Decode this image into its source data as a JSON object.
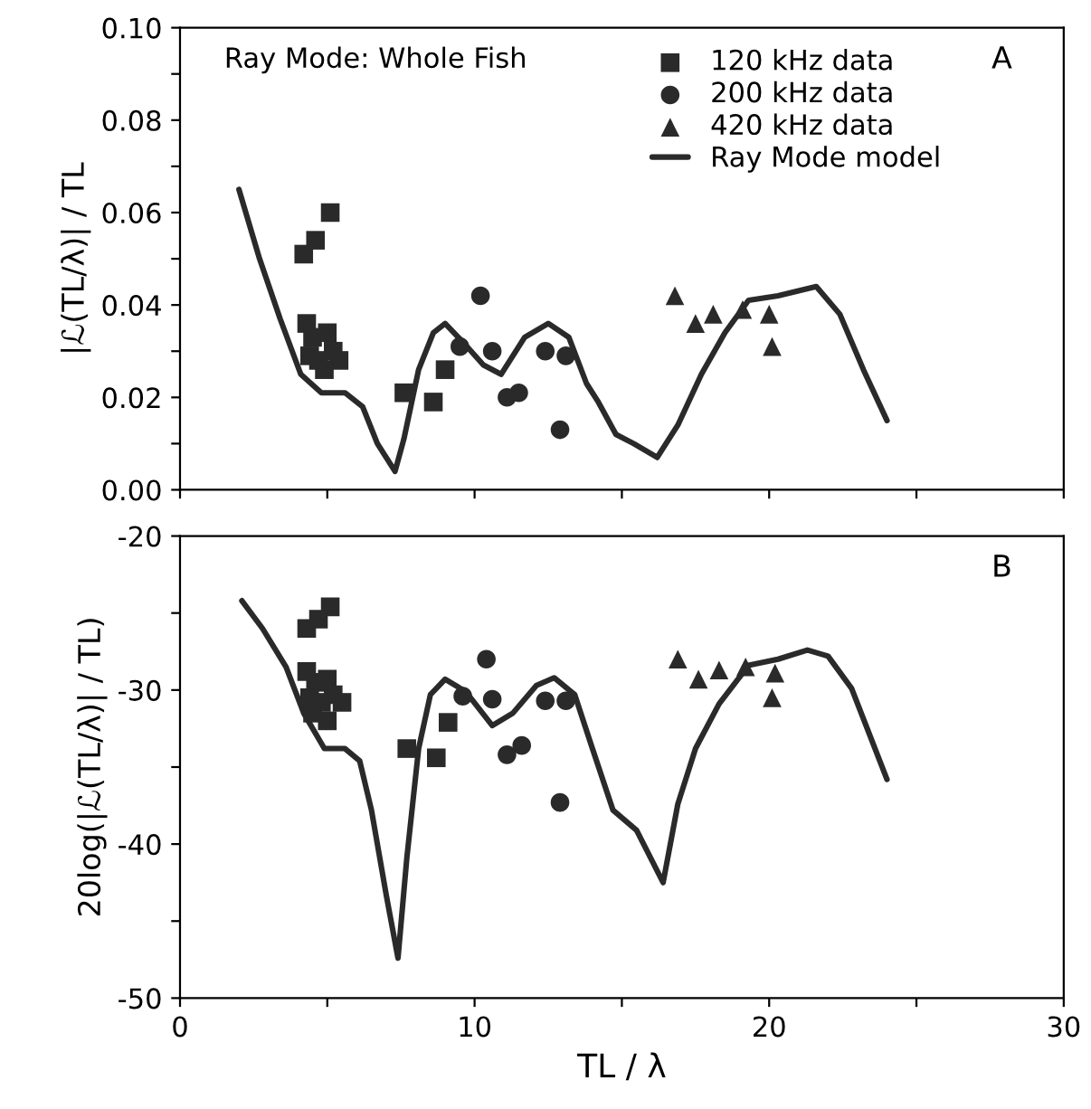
{
  "chart_data": [
    {
      "type": "scatter",
      "ylabel": "|ℒ(TL/λ)| / TL",
      "annotations": [
        "Ray Mode: Whole Fish",
        "A"
      ],
      "xlim": [
        0,
        30
      ],
      "ylim": [
        0,
        0.1
      ],
      "xticks": [
        {
          "value": 0,
          "label": null
        },
        {
          "value": 5,
          "label": null
        },
        {
          "value": 10,
          "label": null
        },
        {
          "value": 15,
          "label": null
        },
        {
          "value": 20,
          "label": null
        },
        {
          "value": 25,
          "label": null
        },
        {
          "value": 30,
          "label": null
        }
      ],
      "yticks": [
        {
          "value": 0,
          "label": "0.00"
        },
        {
          "value": 0.01,
          "label": null
        },
        {
          "value": 0.02,
          "label": "0.02"
        },
        {
          "value": 0.03,
          "label": null
        },
        {
          "value": 0.04,
          "label": "0.04"
        },
        {
          "value": 0.05,
          "label": null
        },
        {
          "value": 0.06,
          "label": "0.06"
        },
        {
          "value": 0.07,
          "label": null
        },
        {
          "value": 0.08,
          "label": "0.08"
        },
        {
          "value": 0.09,
          "label": null
        },
        {
          "value": 0.1,
          "label": "0.10"
        }
      ],
      "tick_labels": "y",
      "grid": false,
      "legend": "top right",
      "series": [
        {
          "name": "120 kHz data",
          "marker": "square",
          "color": "#2a2a2a",
          "x": [
            5.1,
            4.6,
            4.2,
            4.3,
            4.5,
            5.0,
            4.4,
            4.7,
            5.2,
            5.4,
            4.9,
            7.6,
            8.6,
            9.0
          ],
          "values": [
            0.06,
            0.054,
            0.051,
            0.036,
            0.033,
            0.034,
            0.029,
            0.028,
            0.03,
            0.028,
            0.026,
            0.021,
            0.019,
            0.026
          ]
        },
        {
          "name": "200 kHz data",
          "marker": "circle",
          "color": "#2a2a2a",
          "x": [
            10.2,
            9.5,
            10.6,
            11.1,
            11.5,
            12.4,
            13.1,
            12.9
          ],
          "values": [
            0.042,
            0.031,
            0.03,
            0.02,
            0.021,
            0.03,
            0.029,
            0.013
          ]
        },
        {
          "name": "420 kHz data",
          "marker": "triangle",
          "color": "#2a2a2a",
          "x": [
            16.8,
            17.5,
            18.1,
            19.1,
            20.0,
            20.1
          ],
          "values": [
            0.042,
            0.036,
            0.038,
            0.039,
            0.038,
            0.031
          ]
        },
        {
          "name": "Ray Mode model",
          "type": "line",
          "marker": "none",
          "line_style": "solid",
          "color": "#2a2a2a",
          "x": [
            2.0,
            2.7,
            3.4,
            4.1,
            4.8,
            5.6,
            6.2,
            6.7,
            7.3,
            7.6,
            8.1,
            8.6,
            9.0,
            9.6,
            10.3,
            10.9,
            11.7,
            12.5,
            13.2,
            13.8,
            14.2,
            14.8,
            15.4,
            16.2,
            16.9,
            17.7,
            18.5,
            19.3,
            20.3,
            21.6,
            22.4,
            23.2,
            24.0
          ],
          "values": [
            0.065,
            0.05,
            0.037,
            0.025,
            0.021,
            0.021,
            0.018,
            0.01,
            0.004,
            0.011,
            0.026,
            0.034,
            0.036,
            0.032,
            0.027,
            0.025,
            0.033,
            0.036,
            0.033,
            0.023,
            0.019,
            0.012,
            0.01,
            0.007,
            0.014,
            0.025,
            0.034,
            0.041,
            0.042,
            0.044,
            0.038,
            0.026,
            0.015
          ]
        }
      ]
    },
    {
      "type": "scatter",
      "xlabel": "TL / λ",
      "ylabel": "20log(|ℒ(TL/λ)| / TL)",
      "annotations": [
        "B"
      ],
      "xlim": [
        0,
        30
      ],
      "ylim": [
        -50,
        -20
      ],
      "xticks": [
        0,
        {
          "value": 5,
          "label": null
        },
        10,
        {
          "value": 15,
          "label": null
        },
        20,
        {
          "value": 25,
          "label": null
        },
        30
      ],
      "yticks": [
        -50,
        {
          "value": -45,
          "label": null
        },
        -40,
        {
          "value": -35,
          "label": null
        },
        -30,
        {
          "value": -25,
          "label": null
        },
        -20
      ],
      "grid": false,
      "series": [
        {
          "marker": "square",
          "color": "#2a2a2a",
          "x": [
            5.1,
            4.7,
            4.3,
            4.3,
            4.6,
            5.0,
            4.4,
            4.8,
            5.2,
            5.5,
            4.5,
            5.0,
            7.7,
            8.7,
            9.1
          ],
          "values": [
            -24.6,
            -25.4,
            -26.0,
            -28.8,
            -29.5,
            -29.3,
            -30.5,
            -30.8,
            -30.3,
            -30.8,
            -31.5,
            -32.0,
            -33.8,
            -34.4,
            -32.1
          ]
        },
        {
          "marker": "circle",
          "color": "#2a2a2a",
          "x": [
            10.4,
            9.6,
            10.6,
            11.1,
            11.6,
            12.4,
            13.1,
            12.9
          ],
          "values": [
            -28.0,
            -30.4,
            -30.6,
            -34.2,
            -33.6,
            -30.7,
            -30.7,
            -37.3
          ]
        },
        {
          "marker": "triangle",
          "color": "#2a2a2a",
          "x": [
            16.9,
            17.6,
            18.3,
            19.2,
            20.2,
            20.1
          ],
          "values": [
            -28.0,
            -29.3,
            -28.7,
            -28.5,
            -28.9,
            -30.5
          ]
        },
        {
          "type": "line",
          "marker": "none",
          "line_style": "solid",
          "color": "#2a2a2a",
          "x": [
            2.1,
            2.8,
            3.6,
            4.2,
            4.9,
            5.6,
            6.1,
            6.5,
            7.0,
            7.4,
            7.7,
            8.1,
            8.5,
            9.0,
            9.7,
            10.6,
            11.3,
            12.1,
            12.7,
            13.4,
            14.0,
            14.7,
            15.5,
            16.4,
            16.9,
            17.5,
            18.3,
            19.3,
            20.3,
            21.3,
            22.0,
            22.8,
            24.0
          ],
          "values": [
            -24.2,
            -26.0,
            -28.5,
            -31.5,
            -33.8,
            -33.8,
            -34.6,
            -37.8,
            -43.3,
            -47.4,
            -40.9,
            -33.8,
            -30.3,
            -29.3,
            -30.1,
            -32.3,
            -31.5,
            -29.7,
            -29.2,
            -30.3,
            -33.8,
            -37.8,
            -39.1,
            -42.5,
            -37.4,
            -33.8,
            -30.9,
            -28.4,
            -28.0,
            -27.4,
            -27.8,
            -29.9,
            -35.8
          ]
        }
      ]
    }
  ]
}
